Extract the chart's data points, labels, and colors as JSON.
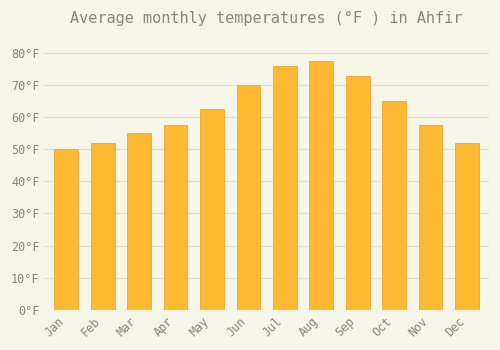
{
  "title": "Average monthly temperatures (°F ) in Ahfir",
  "months": [
    "Jan",
    "Feb",
    "Mar",
    "Apr",
    "May",
    "Jun",
    "Jul",
    "Aug",
    "Sep",
    "Oct",
    "Nov",
    "Dec"
  ],
  "values": [
    50,
    52,
    55,
    57.5,
    62.5,
    70,
    76,
    77.5,
    73,
    65,
    57.5,
    52
  ],
  "bar_color": "#FDB931",
  "bar_edge_color": "#E8A020",
  "background_color": "#F5F5E8",
  "grid_color": "#DDDDCC",
  "text_color": "#888877",
  "ylim": [
    0,
    85
  ],
  "yticks": [
    0,
    10,
    20,
    30,
    40,
    50,
    60,
    70,
    80
  ],
  "ytick_labels": [
    "0°F",
    "10°F",
    "20°F",
    "30°F",
    "40°F",
    "50°F",
    "60°F",
    "70°F",
    "80°F"
  ],
  "title_fontsize": 11,
  "tick_fontsize": 8.5,
  "bar_width": 0.65
}
